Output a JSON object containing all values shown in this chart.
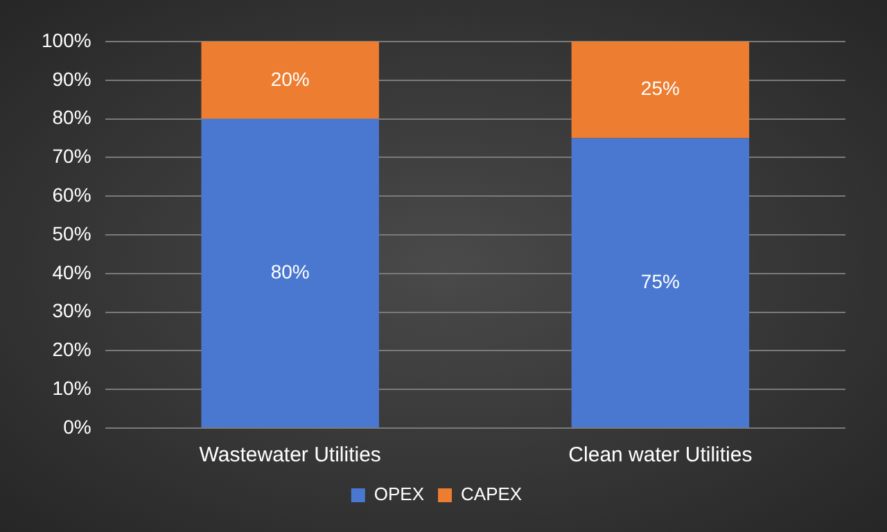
{
  "chart_data": {
    "type": "bar",
    "stacked": true,
    "categories": [
      "Wastewater Utilities",
      "Clean water Utilities"
    ],
    "series": [
      {
        "name": "OPEX",
        "color": "#4a78d0",
        "values": [
          80,
          75
        ],
        "value_labels": [
          "80%",
          "75%"
        ]
      },
      {
        "name": "CAPEX",
        "color": "#ed7d31",
        "values": [
          20,
          25
        ],
        "value_labels": [
          "20%",
          "25%"
        ]
      }
    ],
    "ylim": [
      0,
      100
    ],
    "yticks": [
      {
        "value": 0,
        "label": "0%"
      },
      {
        "value": 10,
        "label": "10%"
      },
      {
        "value": 20,
        "label": "20%"
      },
      {
        "value": 30,
        "label": "30%"
      },
      {
        "value": 40,
        "label": "40%"
      },
      {
        "value": 50,
        "label": "50%"
      },
      {
        "value": 60,
        "label": "60%"
      },
      {
        "value": 70,
        "label": "70%"
      },
      {
        "value": 80,
        "label": "80%"
      },
      {
        "value": 90,
        "label": "90%"
      },
      {
        "value": 100,
        "label": "100%"
      }
    ],
    "grid": "y",
    "legend": "bottom"
  }
}
